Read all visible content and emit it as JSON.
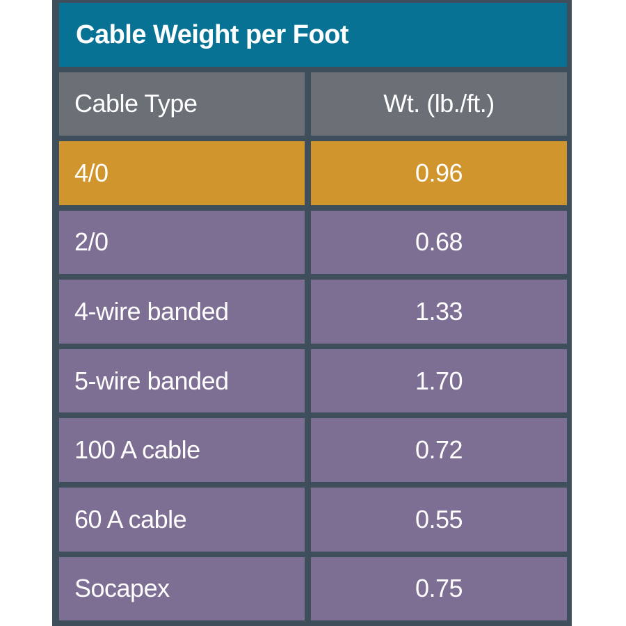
{
  "table": {
    "title": "Cable Weight per Foot",
    "col_type": "Cable Type",
    "col_weight": "Wt. (lb./ft.)",
    "rows": [
      {
        "type": "4/0",
        "weight": "0.96"
      },
      {
        "type": "2/0",
        "weight": "0.68"
      },
      {
        "type": "4-wire banded",
        "weight": "1.33"
      },
      {
        "type": "5-wire banded",
        "weight": "1.70"
      },
      {
        "type": "100 A cable",
        "weight": "0.72"
      },
      {
        "type": "60 A cable",
        "weight": "0.55"
      },
      {
        "type": "Socapex",
        "weight": "0.75"
      }
    ],
    "colors": {
      "frame_bg": "#3F4E5B",
      "title_bg": "#087295",
      "header_bg": "#6A7076",
      "highlight_row_bg": "#D0962D",
      "row_bg": "#7D6E94",
      "text": "#FFFFFF",
      "page_bg": "#FFFFFF"
    }
  },
  "chart_data": {
    "type": "table",
    "title": "Cable Weight per Foot",
    "columns": [
      "Cable Type",
      "Wt. (lb./ft.)"
    ],
    "rows": [
      [
        "4/0",
        0.96
      ],
      [
        "2/0",
        0.68
      ],
      [
        "4-wire banded",
        1.33
      ],
      [
        "5-wire banded",
        1.7
      ],
      [
        "100 A cable",
        0.72
      ],
      [
        "60 A cable",
        0.55
      ],
      [
        "Socapex",
        0.75
      ]
    ],
    "highlighted_row": "4/0",
    "layout": {
      "label_align": "left",
      "value_align": "center",
      "grid": "slate gaps between cells"
    }
  }
}
